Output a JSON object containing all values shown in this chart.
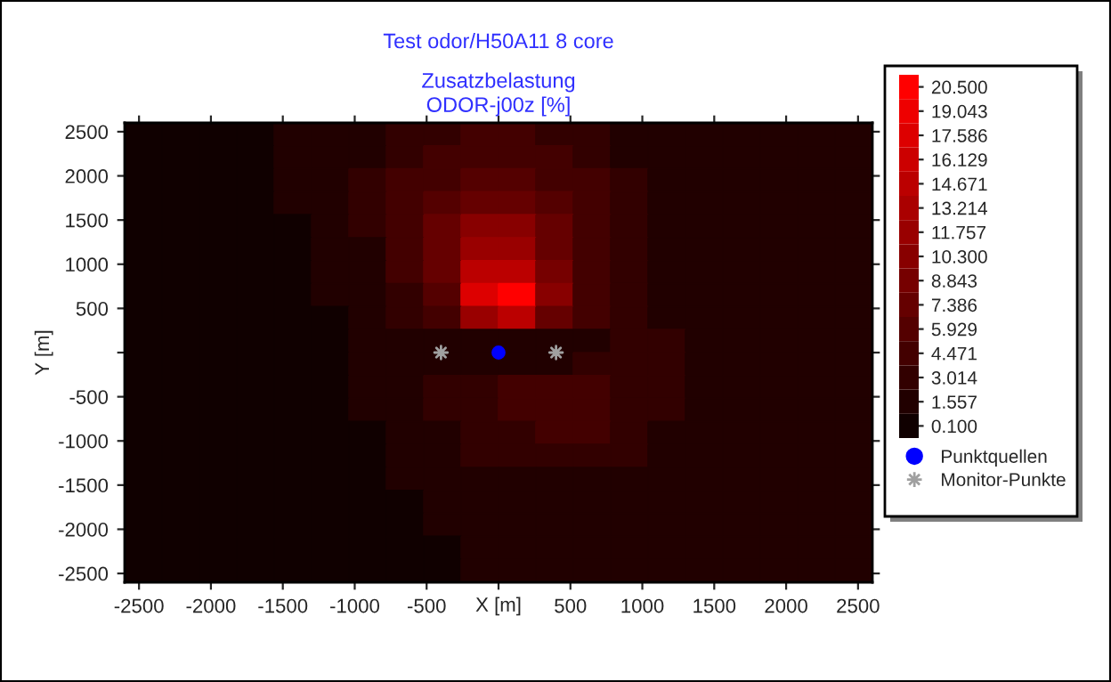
{
  "chart_data": {
    "type": "heatmap",
    "title": "Test odor/H50A11 8 core",
    "subtitle": "Zusatzbelastung\nODOR-j00z [%]",
    "xlabel": "X [m]",
    "ylabel": "Y [m]",
    "cells": [
      [
        0.5,
        0.5,
        0.5,
        0.5,
        1.5,
        1.5,
        2,
        3,
        3,
        4,
        4,
        3,
        3,
        2,
        2,
        2,
        2,
        1.5,
        1,
        1
      ],
      [
        0.5,
        0.5,
        0.5,
        0.5,
        1.5,
        2,
        2,
        3,
        4,
        5,
        5,
        4,
        3,
        2,
        2,
        2,
        2,
        1.5,
        1,
        1
      ],
      [
        0.5,
        0.5,
        0.5,
        0.5,
        1,
        2,
        3,
        4,
        5,
        6,
        6,
        5,
        4,
        3,
        2,
        2,
        2,
        2,
        1,
        1
      ],
      [
        0.5,
        0.5,
        0.5,
        0.5,
        1,
        2,
        3,
        4,
        6,
        8,
        8,
        6,
        4,
        3,
        2,
        2,
        2,
        2,
        1.5,
        1
      ],
      [
        0.5,
        0.5,
        0.5,
        0.5,
        0.5,
        1.5,
        3,
        4,
        7,
        10,
        10,
        7,
        5,
        3,
        2,
        2,
        2,
        2,
        1.5,
        1
      ],
      [
        0.5,
        0.5,
        0.5,
        0.5,
        0.5,
        1.5,
        2,
        4,
        7,
        12,
        12,
        8,
        5,
        3,
        2,
        2,
        2,
        2,
        1.5,
        1
      ],
      [
        0.5,
        0.5,
        0.5,
        0.5,
        0.5,
        1,
        2,
        4,
        7,
        14,
        15,
        9,
        5,
        3,
        2,
        2,
        2,
        2,
        1.5,
        1
      ],
      [
        0.5,
        0.5,
        0.5,
        0.5,
        0.5,
        1,
        2,
        3,
        6,
        17,
        20.5,
        10,
        5,
        3,
        2,
        2,
        2,
        2,
        2,
        1
      ],
      [
        0.5,
        0.5,
        0.5,
        0.5,
        0.5,
        0.5,
        2,
        3,
        5,
        12,
        14,
        7,
        4,
        3,
        2,
        2,
        2,
        2,
        2,
        1
      ],
      [
        0.5,
        0.5,
        0.5,
        0.5,
        0.5,
        0.5,
        1.5,
        2,
        2,
        1,
        1,
        1.5,
        2,
        3,
        3,
        2,
        2,
        2,
        2,
        1
      ],
      [
        0.5,
        0.5,
        0.5,
        0.5,
        0.5,
        0.5,
        1,
        2,
        2,
        1.5,
        1.5,
        2,
        3,
        3,
        3,
        2,
        2,
        2,
        2,
        1
      ],
      [
        0.5,
        0.5,
        0.5,
        0.5,
        0.5,
        0.5,
        1,
        2,
        3,
        3,
        4,
        5,
        4,
        3,
        3,
        2,
        2,
        2,
        2,
        1
      ],
      [
        0.5,
        0.5,
        0.5,
        0.5,
        0.5,
        0.5,
        1,
        1.5,
        3,
        3,
        4,
        5,
        4,
        3,
        3,
        2,
        2,
        2,
        1.5,
        1
      ],
      [
        0.5,
        0.5,
        0.5,
        0.5,
        0.5,
        0.5,
        0.5,
        1.5,
        2,
        3,
        3,
        4,
        4,
        3,
        2,
        2,
        2,
        2,
        1.5,
        1
      ],
      [
        0.5,
        0.5,
        0.5,
        0.5,
        0.5,
        0.5,
        0.5,
        1,
        2,
        3,
        3,
        3,
        3,
        3,
        2,
        2,
        2,
        1.5,
        1,
        1
      ],
      [
        0.5,
        0.5,
        0.5,
        0.5,
        0.5,
        0.5,
        0.5,
        1,
        1.5,
        2,
        2,
        2,
        2,
        2,
        2,
        2,
        2,
        1.5,
        1,
        1
      ],
      [
        0.5,
        0.5,
        0.5,
        0.5,
        0.5,
        0.5,
        0.5,
        0.5,
        1.5,
        1.5,
        2,
        2,
        2,
        2,
        2,
        2,
        1.5,
        1,
        1,
        1
      ],
      [
        0.5,
        0.5,
        0.5,
        0.5,
        0.5,
        0.5,
        0.5,
        0.5,
        1,
        1.5,
        1.5,
        2,
        2,
        2,
        2,
        1.5,
        1.5,
        1,
        1,
        1
      ],
      [
        0.5,
        0.5,
        0.5,
        0.5,
        0.5,
        0.5,
        0.5,
        0.5,
        0.5,
        1.5,
        1.5,
        1.5,
        1.5,
        1.5,
        1.5,
        1.5,
        1,
        1,
        1,
        1
      ],
      [
        0.5,
        0.5,
        0.5,
        0.5,
        0.5,
        0.5,
        0.5,
        0.5,
        0.5,
        1,
        1.5,
        1.5,
        1.5,
        1.5,
        1.5,
        1,
        1,
        1,
        1,
        1
      ]
    ],
    "colors": [
      "#100000",
      "#ff0000"
    ],
    "clim": [
      -0.629,
      21.229
    ],
    "cticks": [
      {
        "value": 0.1,
        "label": "0.100"
      },
      {
        "value": 1.557,
        "label": "1.557"
      },
      {
        "value": 3.014,
        "label": "3.014"
      },
      {
        "value": 4.471,
        "label": "4.471"
      },
      {
        "value": 5.929,
        "label": "5.929"
      },
      {
        "value": 7.386,
        "label": "7.386"
      },
      {
        "value": 8.843,
        "label": "8.843"
      },
      {
        "value": 10.3,
        "label": "10.300"
      },
      {
        "value": 11.757,
        "label": "11.757"
      },
      {
        "value": 13.214,
        "label": "13.214"
      },
      {
        "value": 14.671,
        "label": "14.671"
      },
      {
        "value": 16.129,
        "label": "16.129"
      },
      {
        "value": 17.586,
        "label": "17.586"
      },
      {
        "value": 19.043,
        "label": "19.043"
      },
      {
        "value": 20.5,
        "label": "20.500"
      }
    ],
    "series": [
      {
        "name": "Punktquellen",
        "type": "scatter",
        "marker": "circle",
        "color": "#0000ff",
        "x": [
          0
        ],
        "values": [
          0
        ]
      },
      {
        "name": "Monitor-Punkte",
        "type": "scatter",
        "marker": "cross",
        "color": "#a0a0a0",
        "x": [
          -400,
          400
        ],
        "values": [
          0,
          0
        ]
      }
    ],
    "xlim": [
      -2600,
      2600
    ],
    "ylim": [
      -2600,
      2600
    ],
    "xticks": [
      -2500,
      -2000,
      -1500,
      -1000,
      -500,
      {
        "value": 0,
        "label": null
      },
      500,
      1000,
      1500,
      2000,
      2500
    ],
    "yticks": [
      -2500,
      -2000,
      -1500,
      -1000,
      -500,
      {
        "value": 0,
        "label": null
      },
      500,
      1000,
      1500,
      2000,
      2500
    ],
    "legend": "right"
  }
}
